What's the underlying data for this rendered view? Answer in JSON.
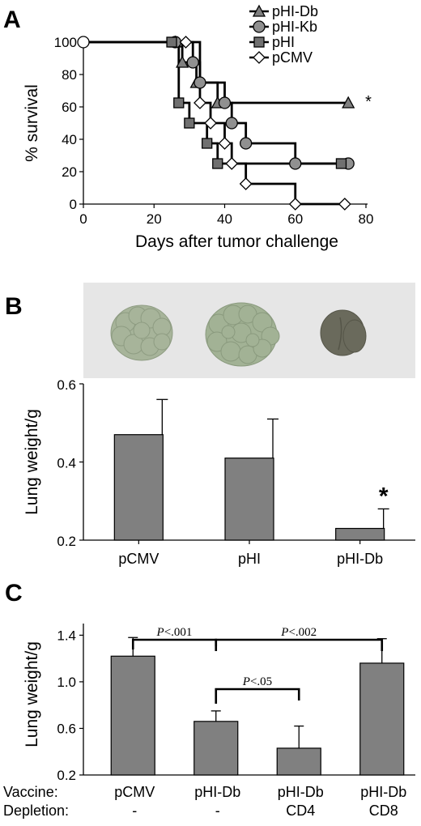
{
  "chart_data": [
    {
      "panel": "A",
      "type": "line",
      "xlabel": "Days after tumor challenge",
      "ylabel": "% survival",
      "xlim": [
        0,
        80
      ],
      "ylim": [
        0,
        100
      ],
      "x_ticks": [
        "0",
        "20",
        "40",
        "60",
        "80"
      ],
      "y_ticks": [
        "0",
        "20",
        "40",
        "60",
        "80",
        "100"
      ],
      "grid": false,
      "legend_position": "top-right",
      "significance_marker": "*",
      "series": [
        {
          "name": "pHI-Db",
          "marker": "triangle",
          "color": "#808080",
          "steps": [
            [
              0,
              100
            ],
            [
              26,
              100
            ],
            [
              28,
              87.5
            ],
            [
              32,
              75
            ],
            [
              38,
              62.5
            ],
            [
              75,
              62.5
            ]
          ]
        },
        {
          "name": "pHI-Kb",
          "marker": "circle",
          "color": "#909090",
          "steps": [
            [
              0,
              100
            ],
            [
              26,
              100
            ],
            [
              31,
              87.5
            ],
            [
              33,
              75
            ],
            [
              40,
              62.5
            ],
            [
              42,
              50
            ],
            [
              46,
              37.5
            ],
            [
              60,
              25
            ],
            [
              75,
              25
            ]
          ]
        },
        {
          "name": "pHI",
          "marker": "square",
          "color": "#707070",
          "steps": [
            [
              0,
              100
            ],
            [
              25,
              100
            ],
            [
              27,
              62.5
            ],
            [
              30,
              50
            ],
            [
              35,
              37.5
            ],
            [
              38,
              25
            ],
            [
              73,
              25
            ]
          ]
        },
        {
          "name": "pCMV",
          "marker": "diamond",
          "color": "#ffffff",
          "steps": [
            [
              0,
              100
            ],
            [
              29,
              100
            ],
            [
              33,
              62.5
            ],
            [
              36,
              50
            ],
            [
              40,
              37.5
            ],
            [
              42,
              25
            ],
            [
              46,
              12.5
            ],
            [
              60,
              0
            ],
            [
              74,
              0
            ]
          ]
        }
      ]
    },
    {
      "panel": "B",
      "type": "bar",
      "ylabel": "Lung weight/g",
      "ylim": [
        0.2,
        0.6
      ],
      "y_ticks": [
        "0.2",
        "0.4",
        "0.6"
      ],
      "categories": [
        "pCMV",
        "pHI",
        "pHI-Db"
      ],
      "values": [
        0.47,
        0.41,
        0.23
      ],
      "errors": [
        0.09,
        0.1,
        0.05
      ],
      "significance_marker": "*",
      "color": "#808080"
    },
    {
      "panel": "C",
      "type": "bar",
      "ylabel": "Lung weight/g",
      "ylim": [
        0.2,
        1.5
      ],
      "y_ticks": [
        "0.2",
        "0.6",
        "1.0",
        "1.4"
      ],
      "row_labels": [
        "Vaccine:",
        "Depletion:"
      ],
      "categories": [
        {
          "vaccine": "pCMV",
          "depletion": "-"
        },
        {
          "vaccine": "pHI-Db",
          "depletion": "-"
        },
        {
          "vaccine": "pHI-Db",
          "depletion": "CD4"
        },
        {
          "vaccine": "pHI-Db",
          "depletion": "CD8"
        }
      ],
      "values": [
        1.22,
        0.66,
        0.43,
        1.16
      ],
      "errors": [
        0.16,
        0.09,
        0.19,
        0.21
      ],
      "color": "#808080",
      "comparisons": [
        {
          "from": 0,
          "to": 1,
          "label_italic": "P",
          "label_rest": "<.001"
        },
        {
          "from": 1,
          "to": 3,
          "label_italic": "P",
          "label_rest": "<.002"
        },
        {
          "from": 1,
          "to": 2,
          "label_italic": "P",
          "label_rest": "<.05"
        }
      ]
    }
  ],
  "panels": {
    "a_letter": "A",
    "b_letter": "B",
    "c_letter": "C"
  },
  "photo": {
    "description_name": "lung-photo"
  }
}
